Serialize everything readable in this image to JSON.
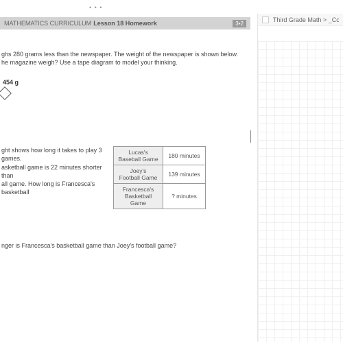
{
  "dots": "• • •",
  "header": {
    "left": "MATHEMATICS CURRICULUM",
    "center": "Lesson 18 Homework",
    "badge": "3•2"
  },
  "problem1": {
    "line1": "ghs 280 grams less than the newspaper.  The weight of the newspaper is shown below.",
    "line2": "he magazine weigh?  Use a tape diagram to model your thinking.",
    "weight": "454 g"
  },
  "problem2": {
    "t1": "ght shows how long it takes to play 3 games.",
    "t2": "asketball game is 22 minutes shorter than",
    "t3": "all game.  How long is Francesca's basketball",
    "rows": [
      {
        "name1": "Lucas's",
        "name2": "Baseball Game",
        "val": "180 minutes"
      },
      {
        "name1": "Joey's",
        "name2": "Football Game",
        "val": "139 minutes"
      },
      {
        "name1": "Francesca's",
        "name2": "Basketball Game",
        "val": "? minutes"
      }
    ]
  },
  "question_b": "nger is Francesca's basketball game than Joey's football game?",
  "sidebar": {
    "title": "Third Grade Math > _Co"
  },
  "colors": {
    "header_bg": "#d3d3d3",
    "badge_bg": "#999999",
    "grid": "#f0f0f0"
  }
}
